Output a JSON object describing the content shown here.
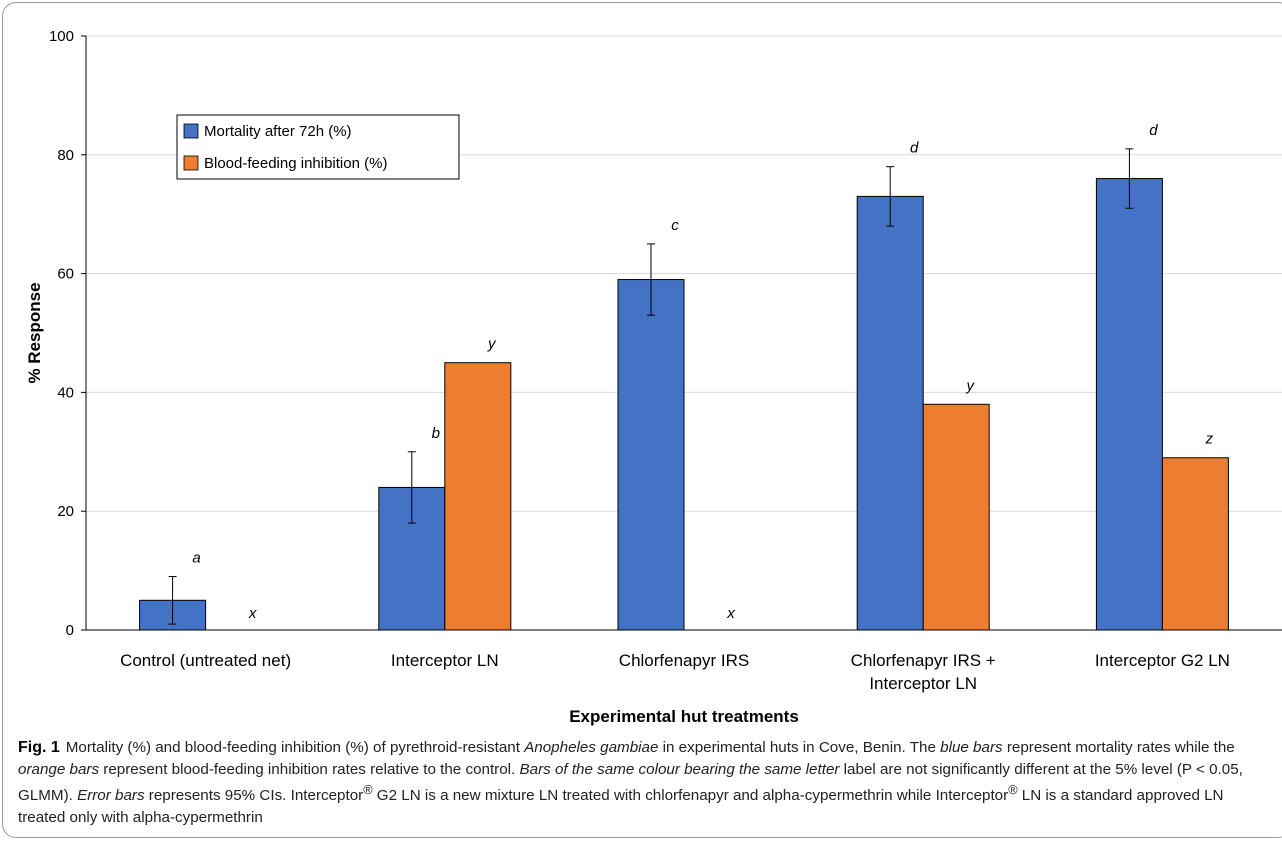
{
  "chart_data": {
    "type": "bar",
    "categories": [
      [
        "Control (untreated net)"
      ],
      [
        "Interceptor LN"
      ],
      [
        "Chlorfenapyr IRS"
      ],
      [
        "Chlorfenapyr IRS +",
        "Interceptor LN"
      ],
      [
        "Interceptor G2 LN"
      ]
    ],
    "series": [
      {
        "name": "Mortality after 72h (%)",
        "color": "#4472C4",
        "values": [
          5,
          24,
          59,
          73,
          76
        ],
        "ci_low": [
          1,
          18,
          53,
          68,
          71
        ],
        "ci_high": [
          9,
          30,
          65,
          78,
          81
        ],
        "letters": [
          "a",
          "b",
          "c",
          "d",
          "d"
        ]
      },
      {
        "name": "Blood-feeding inhibition (%)",
        "color": "#ED7D31",
        "values": [
          0,
          45,
          0,
          38,
          29
        ],
        "letters": [
          "x",
          "y",
          "x",
          "y",
          "z"
        ]
      }
    ],
    "xlabel": "Experimental hut treatments",
    "ylabel": "% Response",
    "ylim": [
      0,
      100
    ],
    "yticks": [
      0,
      20,
      40,
      60,
      80,
      100
    ],
    "grid": true,
    "legend": "top-left"
  },
  "caption": {
    "label": "Fig. 1",
    "parts": [
      {
        "t": "Mortality (%) and blood-feeding inhibition (%) of pyrethroid-resistant "
      },
      {
        "t": "Anopheles gambiae",
        "i": true
      },
      {
        "t": " in experimental huts in Cove, Benin. The "
      },
      {
        "t": "blue bars",
        "i": true
      },
      {
        "t": " represent mortality rates while the "
      },
      {
        "t": "orange bars",
        "i": true
      },
      {
        "t": " represent blood-feeding inhibition rates relative to the control. "
      },
      {
        "t": "Bars of the same colour bearing the same letter",
        "i": true
      },
      {
        "t": " label are not significantly different at the 5% level (P < 0.05, GLMM). "
      },
      {
        "t": "Error bars",
        "i": true
      },
      {
        "t": " represents 95% CIs. Interceptor"
      },
      {
        "t": "®",
        "sup": true
      },
      {
        "t": " G2 LN is a new mixture LN treated with chlorfenapyr and alpha-cypermethrin while Interceptor"
      },
      {
        "t": "®",
        "sup": true
      },
      {
        "t": " LN is a standard approved LN treated only with alpha-cypermethrin"
      }
    ]
  }
}
